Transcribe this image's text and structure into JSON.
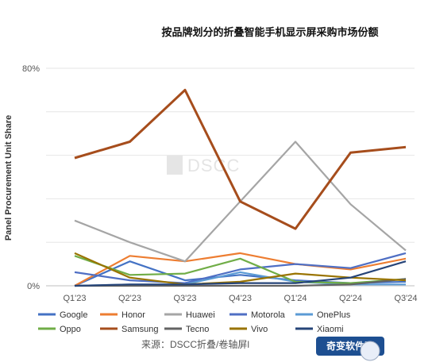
{
  "chart_data": {
    "type": "line",
    "title": "按品牌划分的折叠智能手机显示屏采购市场份额",
    "ylabel": "Panel Procurement Unit Share",
    "xlabel": "",
    "ylim": [
      0,
      80
    ],
    "y_tick_labels": [
      "0%",
      "80%"
    ],
    "grid": true,
    "legend_position": "bottom",
    "categories": [
      "Q1'23",
      "Q2'23",
      "Q3'23",
      "Q4'23",
      "Q1'24",
      "Q2'24",
      "Q3'24"
    ],
    "series": [
      {
        "name": "Google",
        "color": "#4472c4",
        "values": [
          0,
          9,
          2,
          4,
          2,
          1,
          1.5
        ]
      },
      {
        "name": "Honor",
        "color": "#ed7d31",
        "values": [
          0,
          11,
          9,
          12,
          8,
          6,
          10
        ]
      },
      {
        "name": "Huawei",
        "color": "#a5a5a5",
        "values": [
          24,
          16,
          9,
          31,
          53,
          30,
          13
        ]
      },
      {
        "name": "Motorola",
        "color": "#4f6fc4",
        "values": [
          5,
          2,
          1,
          6,
          8,
          6.5,
          12
        ]
      },
      {
        "name": "OnePlus",
        "color": "#5b9bd5",
        "values": [
          0,
          0.5,
          0.5,
          5,
          1.5,
          0.5,
          0.5
        ]
      },
      {
        "name": "Oppo",
        "color": "#70ad47",
        "values": [
          11,
          4,
          4.5,
          10,
          1.5,
          1,
          2.5
        ]
      },
      {
        "name": "Samsung",
        "color": "#a64d1c",
        "values": [
          47,
          53,
          72,
          31,
          21,
          49,
          51
        ]
      },
      {
        "name": "Tecno",
        "color": "#636363",
        "values": [
          0,
          0,
          0,
          0,
          0,
          0.5,
          2.5
        ]
      },
      {
        "name": "Vivo",
        "color": "#997300",
        "values": [
          12,
          3,
          0.5,
          1.5,
          4.5,
          3,
          2
        ]
      },
      {
        "name": "Xiaomi",
        "color": "#264478",
        "values": [
          0,
          0.5,
          0.5,
          1,
          1,
          3,
          9
        ]
      }
    ]
  },
  "watermark": "DSCC",
  "source_text": "来源：DSCC折叠/卷轴屏l",
  "badge_text": "奇变软件园"
}
